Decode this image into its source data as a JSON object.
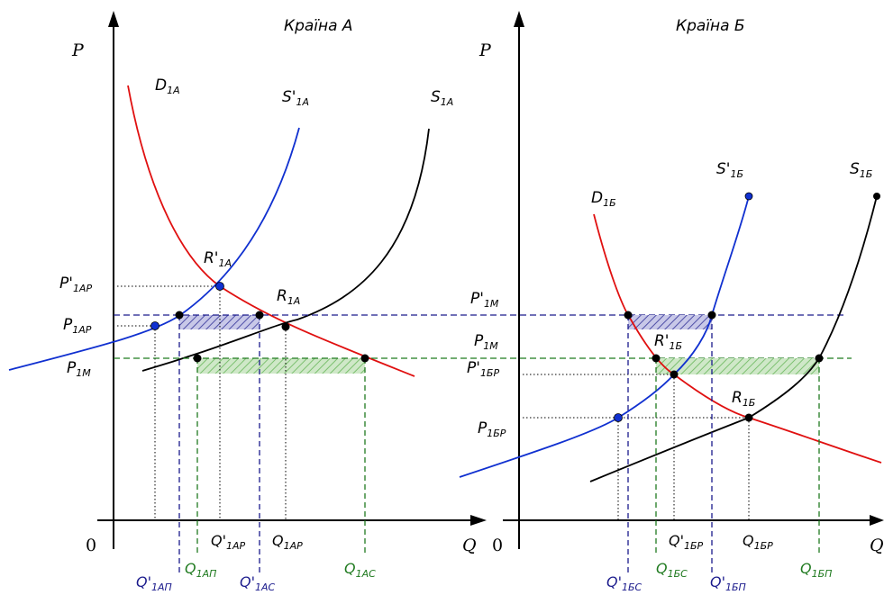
{
  "panels": [
    {
      "title": "Країна А",
      "p_axis": "P",
      "q_axis": "Q",
      "origin": "0",
      "curves": {
        "demand": {
          "base": "D",
          "sub": "1A",
          "color": "#e01010"
        },
        "supply": {
          "base": "S",
          "sub": "1A",
          "color": "#000000"
        },
        "supply_prime": {
          "base": "S'",
          "sub": "1A",
          "color": "#1030d0"
        }
      },
      "point_label": {
        "base": "R'",
        "sub": "1A"
      },
      "point_label2": {
        "base": "R",
        "sub": "1A"
      },
      "price_labels": [
        {
          "base": "P'",
          "sub": "1AP"
        },
        {
          "base": "P",
          "sub": "1AP"
        },
        {
          "base": "P",
          "sub": "1M"
        }
      ],
      "qty_labels": [
        {
          "base": "Q'",
          "sub": "1AP",
          "color": "black"
        },
        {
          "base": "Q",
          "sub": "1AP",
          "color": "black"
        },
        {
          "base": "Q'",
          "sub": "1AП",
          "color": "blue"
        },
        {
          "base": "Q",
          "sub": "1AП",
          "color": "green"
        },
        {
          "base": "Q'",
          "sub": "1AC",
          "color": "blue"
        },
        {
          "base": "Q",
          "sub": "1AC",
          "color": "green"
        }
      ]
    },
    {
      "title": "Країна Б",
      "p_axis": "P",
      "q_axis": "Q",
      "origin": "0",
      "curves": {
        "demand": {
          "base": "D",
          "sub": "1Б",
          "color": "#e01010"
        },
        "supply": {
          "base": "S",
          "sub": "1Б",
          "color": "#000000"
        },
        "supply_prime": {
          "base": "S'",
          "sub": "1Б",
          "color": "#1030d0"
        }
      },
      "point_label": {
        "base": "R'",
        "sub": "1Б"
      },
      "point_label2": {
        "base": "R",
        "sub": "1Б"
      },
      "price_labels": [
        {
          "base": "P'",
          "sub": "1M"
        },
        {
          "base": "P",
          "sub": "1M"
        },
        {
          "base": "P'",
          "sub": "1БР"
        },
        {
          "base": "P",
          "sub": "1БР"
        }
      ],
      "qty_labels": [
        {
          "base": "Q'",
          "sub": "1БР",
          "color": "black"
        },
        {
          "base": "Q",
          "sub": "1БР",
          "color": "black"
        },
        {
          "base": "Q'",
          "sub": "1БС",
          "color": "blue"
        },
        {
          "base": "Q",
          "sub": "1БС",
          "color": "green"
        },
        {
          "base": "Q'",
          "sub": "1БП",
          "color": "blue"
        },
        {
          "base": "Q",
          "sub": "1БП",
          "color": "green"
        }
      ]
    }
  ],
  "colors": {
    "demand": "#e01010",
    "supply": "#000000",
    "supply_prime": "#1030d0",
    "world_price_prime": "#1a1a8c",
    "world_price": "#1f7a1f"
  }
}
